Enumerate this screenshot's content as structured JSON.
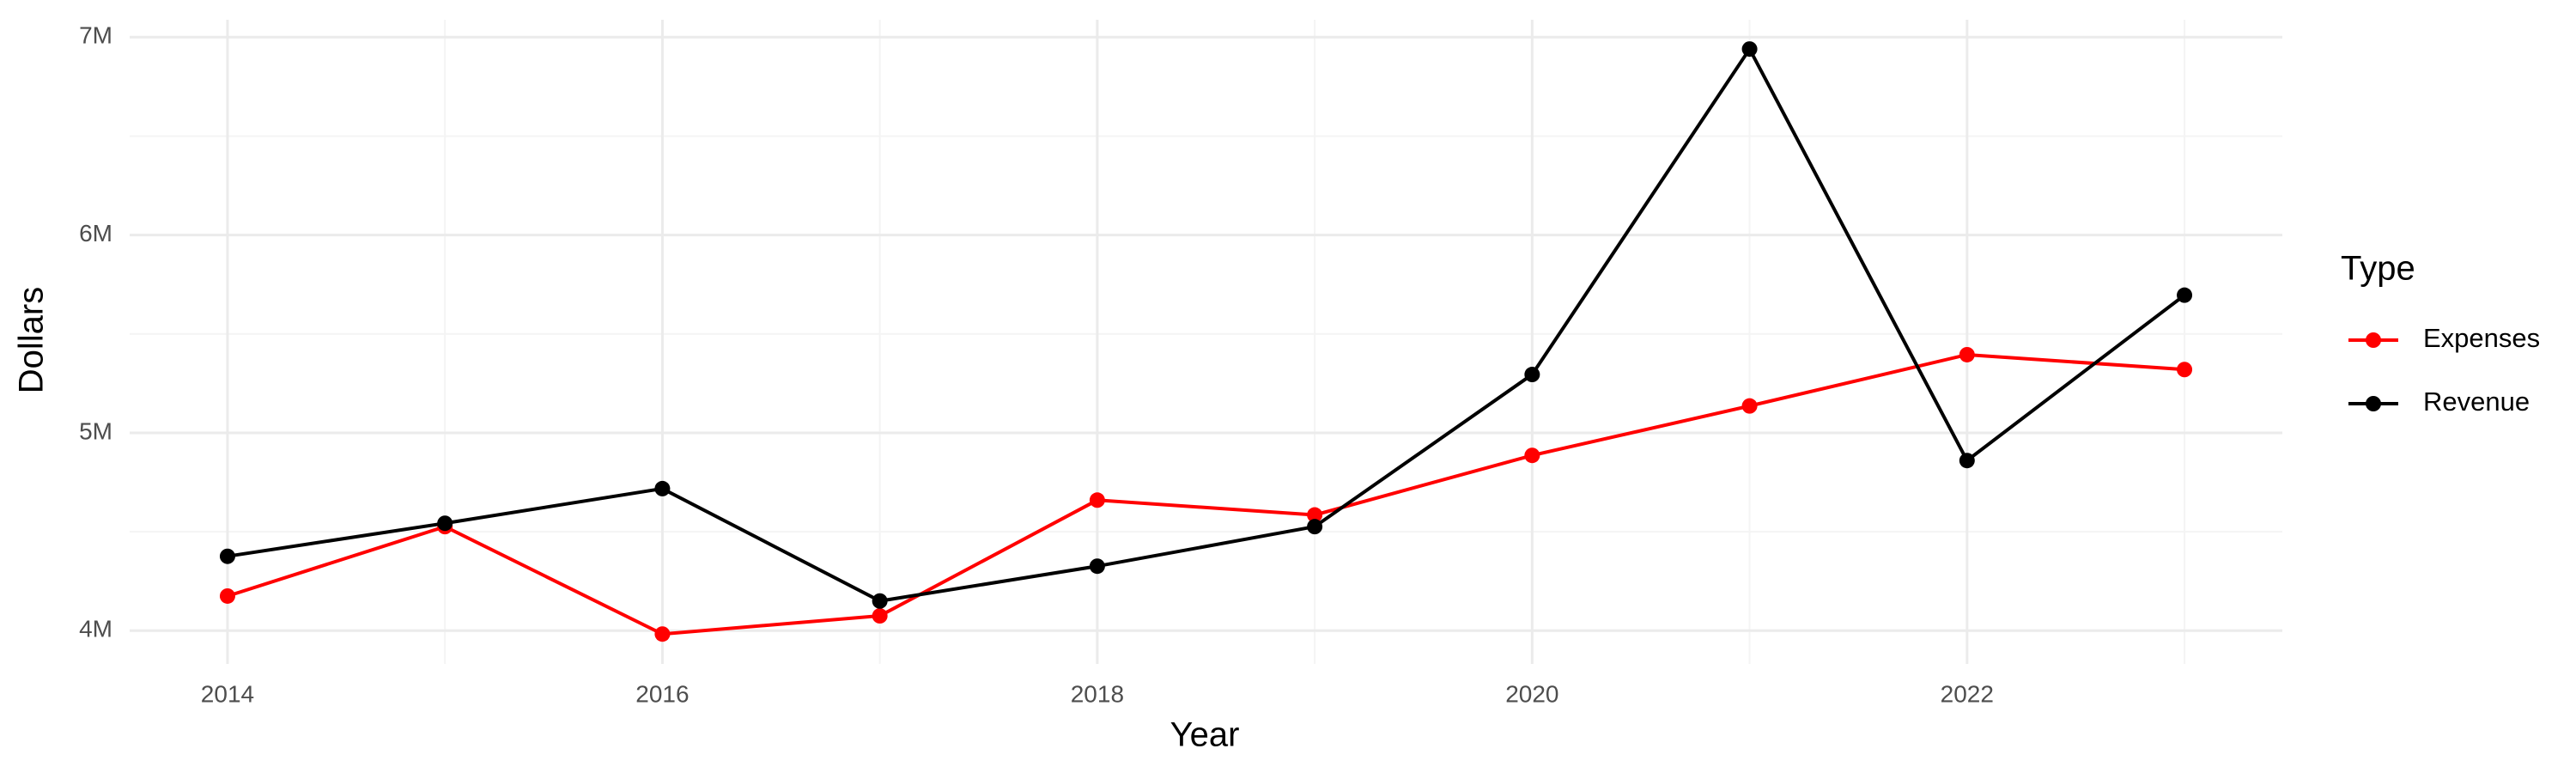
{
  "chart_data": {
    "type": "line",
    "x_label": "Year",
    "y_label": "Dollars",
    "legend_title": "Type",
    "legend_position": "right",
    "grid": true,
    "x": [
      2014,
      2015,
      2016,
      2017,
      2018,
      2019,
      2020,
      2021,
      2022,
      2023
    ],
    "series": [
      {
        "name": "Expenses",
        "color": "#ff0000",
        "values": [
          4175000,
          4526000,
          3983000,
          4075000,
          4660000,
          4585000,
          4886000,
          5136000,
          5395000,
          5320000
        ]
      },
      {
        "name": "Revenue",
        "color": "#000000",
        "values": [
          4376000,
          4543000,
          4718000,
          4150000,
          4326000,
          4526000,
          5295000,
          6940000,
          4860000,
          5696000
        ]
      }
    ],
    "xlim": [
      2013.55,
      2023.45
    ],
    "xticks": [
      2014,
      2016,
      2018,
      2020,
      2022
    ],
    "x_minor_ticks": [
      2015,
      2017,
      2019,
      2021,
      2023
    ],
    "ylim": [
      3832000,
      7088000
    ],
    "yticks": [
      {
        "value": 4000000,
        "label": "4M"
      },
      {
        "value": 5000000,
        "label": "5M"
      },
      {
        "value": 6000000,
        "label": "6M"
      },
      {
        "value": 7000000,
        "label": "7M"
      }
    ],
    "y_minor_ticks": [
      4500000,
      5500000,
      6500000
    ]
  }
}
